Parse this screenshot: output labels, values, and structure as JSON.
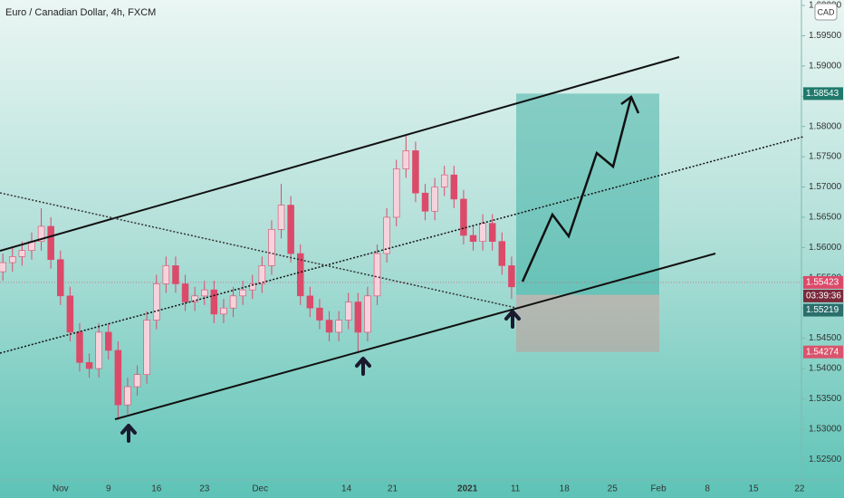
{
  "chart_data": {
    "type": "candlestick",
    "title": "Euro / Canadian Dollar, 4h, FXCM",
    "currency": "CAD",
    "x": [
      -6,
      -5,
      -4,
      -3,
      -2,
      -1,
      0,
      1,
      2,
      3,
      4,
      5,
      6,
      7,
      8,
      9,
      10,
      11,
      12,
      13,
      14,
      15,
      16,
      17,
      18,
      19,
      20,
      21,
      22,
      23,
      24,
      25,
      26,
      27,
      28,
      29,
      30,
      31,
      32,
      33,
      34,
      35,
      36,
      37,
      38,
      39,
      40,
      41,
      42,
      43,
      44,
      45,
      46,
      47
    ],
    "open": [
      1.556,
      1.5575,
      1.5585,
      1.5595,
      1.561,
      1.5635,
      1.558,
      1.552,
      1.546,
      1.541,
      1.54,
      1.546,
      1.543,
      1.534,
      1.537,
      1.539,
      1.548,
      1.554,
      1.557,
      1.554,
      1.551,
      1.552,
      1.553,
      1.549,
      1.55,
      1.552,
      1.553,
      1.554,
      1.557,
      1.563,
      1.567,
      1.559,
      1.552,
      1.55,
      1.548,
      1.546,
      1.548,
      1.551,
      1.546,
      1.552,
      1.559,
      1.565,
      1.573,
      1.576,
      1.569,
      1.566,
      1.57,
      1.572,
      1.568,
      1.562,
      1.561,
      1.564,
      1.561,
      1.557
    ],
    "high": [
      1.559,
      1.56,
      1.561,
      1.5625,
      1.5665,
      1.565,
      1.5595,
      1.5535,
      1.5475,
      1.5425,
      1.5475,
      1.5475,
      1.5445,
      1.5385,
      1.5405,
      1.5495,
      1.5555,
      1.5585,
      1.5585,
      1.5555,
      1.5535,
      1.5545,
      1.5545,
      1.5515,
      1.5535,
      1.5545,
      1.5555,
      1.5585,
      1.5645,
      1.5705,
      1.5685,
      1.5605,
      1.5535,
      1.5515,
      1.5495,
      1.5495,
      1.5525,
      1.5525,
      1.5535,
      1.5605,
      1.5665,
      1.5745,
      1.5785,
      1.5775,
      1.5705,
      1.5715,
      1.5735,
      1.5735,
      1.5695,
      1.5635,
      1.5655,
      1.5655,
      1.5625,
      1.5585
    ],
    "low": [
      1.5545,
      1.556,
      1.557,
      1.558,
      1.5595,
      1.5565,
      1.5505,
      1.5445,
      1.5395,
      1.5385,
      1.5385,
      1.5415,
      1.5315,
      1.5325,
      1.5355,
      1.5375,
      1.5465,
      1.5525,
      1.5525,
      1.5495,
      1.5495,
      1.5505,
      1.5475,
      1.5475,
      1.5485,
      1.5505,
      1.5515,
      1.5525,
      1.5555,
      1.5615,
      1.5575,
      1.5505,
      1.5485,
      1.5465,
      1.5445,
      1.5445,
      1.5465,
      1.5425,
      1.5445,
      1.5505,
      1.5575,
      1.5635,
      1.5715,
      1.5675,
      1.5645,
      1.5645,
      1.5685,
      1.5665,
      1.5605,
      1.5595,
      1.5595,
      1.5595,
      1.5555,
      1.5515
    ],
    "close": [
      1.5575,
      1.5585,
      1.5595,
      1.561,
      1.5635,
      1.558,
      1.552,
      1.546,
      1.541,
      1.54,
      1.546,
      1.543,
      1.534,
      1.537,
      1.539,
      1.548,
      1.554,
      1.557,
      1.554,
      1.551,
      1.552,
      1.553,
      1.549,
      1.55,
      1.552,
      1.553,
      1.554,
      1.557,
      1.563,
      1.567,
      1.559,
      1.552,
      1.55,
      1.548,
      1.546,
      1.548,
      1.551,
      1.546,
      1.552,
      1.559,
      1.565,
      1.573,
      1.576,
      1.569,
      1.566,
      1.57,
      1.572,
      1.568,
      1.562,
      1.561,
      1.564,
      1.561,
      1.557,
      1.5535
    ],
    "up_color": "#f6d3dc",
    "down_color": "#dc4a6a",
    "xlim": [
      -6.3,
      77.2
    ],
    "xticks": [
      {
        "value": 0,
        "label": "Nov"
      },
      {
        "value": 5,
        "label": "9"
      },
      {
        "value": 10,
        "label": "16"
      },
      {
        "value": 15,
        "label": "23"
      },
      {
        "value": 20.8,
        "label": "Dec"
      },
      {
        "value": 29.8,
        "label": "14"
      },
      {
        "value": 34.6,
        "label": "21"
      },
      {
        "value": 42.4,
        "label": "2021"
      },
      {
        "value": 47.4,
        "label": "11"
      },
      {
        "value": 52.5,
        "label": "18"
      },
      {
        "value": 57.5,
        "label": "25"
      },
      {
        "value": 62.3,
        "label": "Feb"
      },
      {
        "value": 67.4,
        "label": "8"
      },
      {
        "value": 72.2,
        "label": "15"
      },
      {
        "value": 77,
        "label": "22"
      }
    ],
    "ylim": [
      1.5216,
      1.6009
    ],
    "yticks": [
      {
        "value": 1.525,
        "label": "1.52500"
      },
      {
        "value": 1.53,
        "label": "1.53000"
      },
      {
        "value": 1.535,
        "label": "1.53500"
      },
      {
        "value": 1.54,
        "label": "1.54000"
      },
      {
        "value": 1.545,
        "label": "1.54500"
      },
      {
        "value": 1.55,
        "label": "1.55000"
      },
      {
        "value": 1.555,
        "label": "1.55500"
      },
      {
        "value": 1.56,
        "label": "1.56000"
      },
      {
        "value": 1.565,
        "label": "1.56500"
      },
      {
        "value": 1.57,
        "label": "1.57000"
      },
      {
        "value": 1.575,
        "label": "1.57500"
      },
      {
        "value": 1.58,
        "label": "1.58000"
      },
      {
        "value": 1.585,
        "label": "1.58500"
      },
      {
        "value": 1.59,
        "label": "1.59000"
      },
      {
        "value": 1.595,
        "label": "1.59500"
      },
      {
        "value": 1.6,
        "label": "1.60000"
      }
    ],
    "grid": false,
    "price_labels": [
      1.58543,
      1.55423,
      1.55219,
      1.54274
    ],
    "price_label_colors": [
      "#1f7a6c",
      "#dc4a6a",
      "#2a6f6c",
      "#d9546c"
    ],
    "countdown": "03:39:36"
  }
}
